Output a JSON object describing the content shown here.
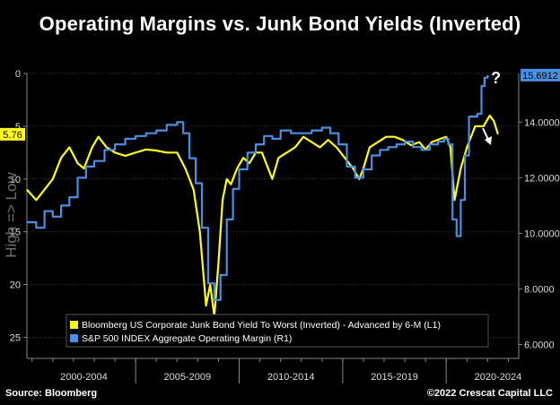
{
  "title": "Operating Margins vs. Junk Bond Yields (Inverted)",
  "source": "Source: Bloomberg",
  "credit": "©2022 Crescat Capital LLC",
  "left_axis_label": "High => Low",
  "annotation_question": "?",
  "colors": {
    "yellow": "#ffff1a",
    "blue": "#4a90e2",
    "grid": "#3a3a3a",
    "background": "#000000",
    "left_badge": "#ffff1a",
    "right_badge": "#4a90e2"
  },
  "chart_data": {
    "type": "line",
    "x_tick_labels": [
      "2000-2004",
      "2005-2009",
      "2010-2014",
      "2015-2019",
      "2020-2024"
    ],
    "y_left": {
      "ticks": [
        "0",
        "5",
        "10",
        "15",
        "20",
        "25"
      ],
      "range": [
        0,
        27
      ],
      "inverted": true,
      "label": "High => Low"
    },
    "y_right": {
      "ticks": [
        "14.0000",
        "12.0000",
        "10.0000",
        "8.0000",
        "6.0000"
      ],
      "range": [
        5.5,
        15.75
      ]
    },
    "left_badge": "5.76",
    "right_badge": "15.6912",
    "series": [
      {
        "name": "Bloomberg US Corporate Junk Bond Yield To Worst (Inverted) - Advanced by 6-M (L1)",
        "axis": "left",
        "x": [
          1999.75,
          2000.2,
          2000.6,
          2001.0,
          2001.4,
          2001.8,
          2002.2,
          2002.5,
          2002.9,
          2003.2,
          2003.6,
          2004.0,
          2004.5,
          2005.0,
          2005.5,
          2006.0,
          2006.5,
          2007.0,
          2007.4,
          2007.8,
          2008.1,
          2008.4,
          2008.6,
          2008.8,
          2009.0,
          2009.2,
          2009.4,
          2009.6,
          2009.9,
          2010.2,
          2010.5,
          2010.8,
          2011.1,
          2011.4,
          2011.6,
          2011.9,
          2012.3,
          2012.7,
          2013.1,
          2013.5,
          2013.9,
          2014.3,
          2014.7,
          2015.1,
          2015.5,
          2015.8,
          2016.0,
          2016.3,
          2016.7,
          2017.1,
          2017.5,
          2017.9,
          2018.3,
          2018.7,
          2019.0,
          2019.3,
          2019.7,
          2020.0,
          2020.2,
          2020.4,
          2020.7,
          2021.0,
          2021.4,
          2021.8,
          2022.1,
          2022.3,
          2022.5
        ],
        "values": [
          11,
          12,
          11,
          10,
          8,
          7,
          8.5,
          9,
          7,
          6,
          7,
          7.5,
          7.8,
          7.5,
          7.2,
          7.3,
          7.5,
          7.5,
          9,
          11,
          15,
          22,
          20,
          23,
          18,
          12,
          10,
          10.5,
          9,
          8,
          8.5,
          7.5,
          7.5,
          9,
          10,
          8,
          7.5,
          7,
          6,
          6.5,
          7,
          6.3,
          7,
          8,
          9,
          10,
          9,
          7,
          6.5,
          6,
          6,
          6.3,
          6.8,
          6.5,
          7.2,
          6.5,
          6.2,
          6,
          7,
          12,
          9,
          7,
          5,
          5,
          4,
          4.5,
          5.76
        ]
      },
      {
        "name": "S&P 500 INDEX Aggregate Operating Margin (R1)",
        "axis": "right",
        "x": [
          1999.75,
          2000.2,
          2000.6,
          2001.0,
          2001.4,
          2001.8,
          2002.2,
          2002.6,
          2003.0,
          2003.5,
          2004.0,
          2004.5,
          2005.0,
          2005.5,
          2006.0,
          2006.5,
          2007.0,
          2007.3,
          2007.6,
          2007.9,
          2008.2,
          2008.5,
          2008.8,
          2009.1,
          2009.4,
          2009.7,
          2010.0,
          2010.4,
          2010.8,
          2011.2,
          2011.6,
          2012.0,
          2012.5,
          2013.0,
          2013.5,
          2014.0,
          2014.4,
          2014.8,
          2015.2,
          2015.6,
          2016.0,
          2016.4,
          2016.8,
          2017.2,
          2017.6,
          2018.0,
          2018.4,
          2018.8,
          2019.2,
          2019.6,
          2019.9,
          2020.1,
          2020.3,
          2020.5,
          2020.7,
          2020.9,
          2021.1,
          2021.3,
          2021.5,
          2021.7,
          2021.85,
          2022.0
        ],
        "values": [
          10.4,
          10.2,
          10.8,
          10.6,
          11.0,
          11.3,
          12.0,
          12.4,
          12.6,
          13.0,
          13.2,
          13.4,
          13.5,
          13.6,
          13.7,
          13.9,
          14.0,
          13.6,
          12.7,
          11.8,
          10.2,
          8.2,
          7.6,
          8.5,
          10.5,
          11.6,
          12.3,
          12.9,
          13.2,
          13.5,
          13.4,
          13.7,
          13.6,
          13.6,
          13.7,
          13.8,
          13.6,
          13.2,
          12.4,
          12.0,
          12.3,
          12.8,
          13.0,
          13.1,
          13.2,
          13.3,
          13.1,
          13.0,
          13.2,
          13.3,
          13.4,
          13.2,
          10.5,
          9.9,
          11.2,
          12.8,
          14.2,
          14.2,
          14.3,
          15.3,
          15.6,
          15.69
        ]
      }
    ],
    "x_range": [
      1999.75,
      2023.5
    ],
    "grid": true,
    "legend_placement": "bottom-left"
  }
}
